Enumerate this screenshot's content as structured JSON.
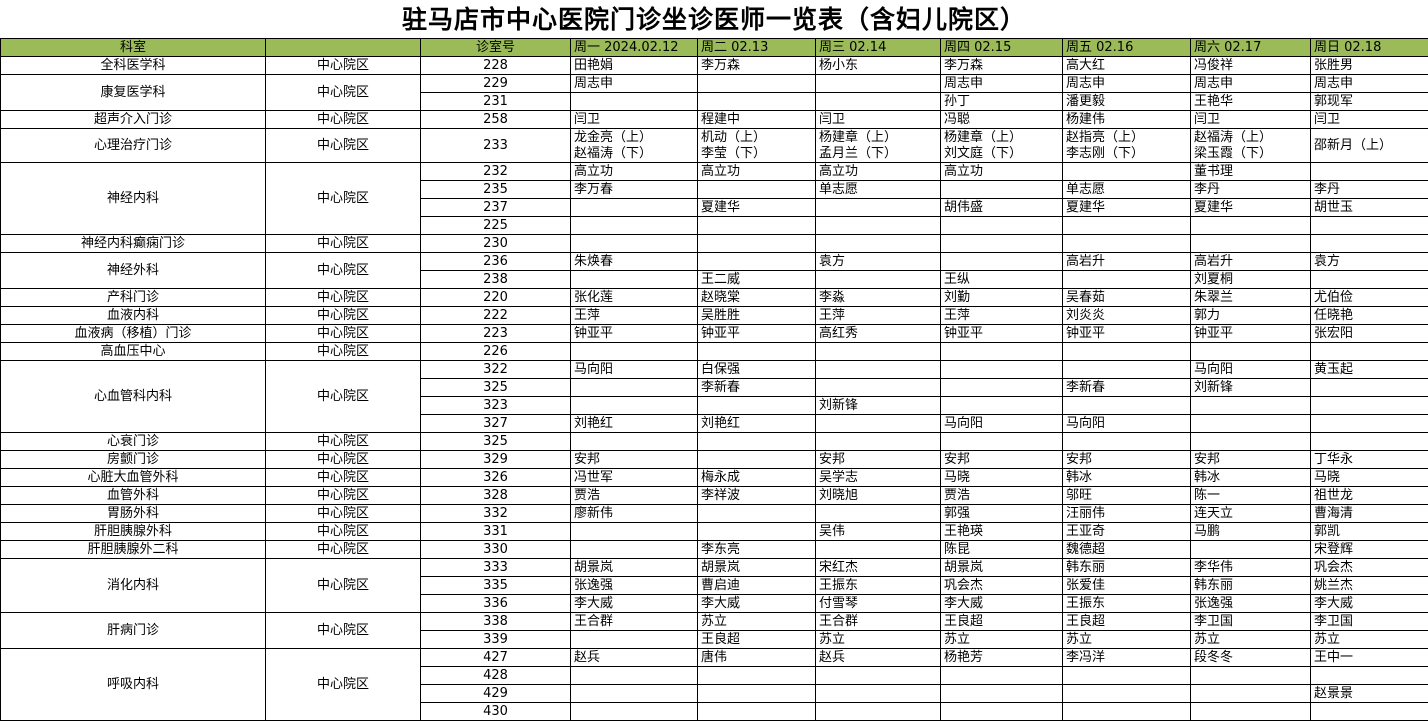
{
  "title": "驻马店市中心医院门诊坐诊医师一览表（含妇儿院区）",
  "header_color": "#9bbb59",
  "columns": [
    "科室",
    "",
    "诊室号",
    "周一 2024.02.12",
    "周二   02.13",
    "周三   02.14",
    "周四   02.15",
    "周五   02.16",
    "周六    02.17",
    "周日    02.18"
  ],
  "departments": [
    {
      "name": "全科医学科",
      "campus": "中心院区",
      "rooms": [
        {
          "room": "228",
          "doctors": [
            "田艳娟",
            "李万森",
            "杨小东",
            "李万森",
            "高大红",
            "冯俊祥",
            "张胜男"
          ]
        }
      ]
    },
    {
      "name": "康复医学科",
      "campus": "中心院区",
      "rooms": [
        {
          "room": "229",
          "doctors": [
            "周志申",
            "",
            "",
            "周志申",
            "周志申",
            "周志申",
            "周志申"
          ]
        },
        {
          "room": "231",
          "doctors": [
            "",
            "",
            "",
            "孙丁",
            "潘更毅",
            "王艳华",
            "郭现军"
          ]
        }
      ]
    },
    {
      "name": "超声介入门诊",
      "campus": "中心院区",
      "rooms": [
        {
          "room": "258",
          "doctors": [
            "闫卫",
            "程建中",
            "闫卫",
            "冯聪",
            "杨建伟",
            "闫卫",
            "闫卫"
          ]
        }
      ]
    },
    {
      "name": "心理治疗门诊",
      "campus": "中心院区",
      "rooms": [
        {
          "room": "233",
          "tall": true,
          "doctors": [
            "龙金亮（上）\n赵福涛（下）",
            "机动（上）\n李莹（下）",
            "杨建章（上）\n孟月兰（下）",
            "杨建章（上）\n刘文庭（下）",
            "赵指亮（上）\n李志刚（下）",
            "赵福涛（上）\n梁玉霞（下）",
            "邵新月（上）"
          ]
        }
      ]
    },
    {
      "name": "神经内科",
      "campus": "中心院区",
      "rooms": [
        {
          "room": "232",
          "doctors": [
            "高立功",
            "高立功",
            "高立功",
            "高立功",
            "",
            "董书理",
            ""
          ]
        },
        {
          "room": "235",
          "doctors": [
            "李万春",
            "",
            "单志愿",
            "",
            "单志愿",
            "李丹",
            "李丹"
          ]
        },
        {
          "room": "237",
          "doctors": [
            "",
            "夏建华",
            "",
            "胡伟盛",
            "夏建华",
            "夏建华",
            "胡世玉"
          ]
        },
        {
          "room": "225",
          "doctors": [
            "",
            "",
            "",
            "",
            "",
            "",
            ""
          ]
        }
      ]
    },
    {
      "name": "神经内科癫痫门诊",
      "campus": "中心院区",
      "rooms": [
        {
          "room": "230",
          "doctors": [
            "",
            "",
            "",
            "",
            "",
            "",
            ""
          ]
        }
      ]
    },
    {
      "name": "神经外科",
      "campus": "中心院区",
      "rooms": [
        {
          "room": "236",
          "doctors": [
            "朱焕春",
            "",
            "袁方",
            "",
            "高岩升",
            "高岩升",
            "袁方"
          ]
        },
        {
          "room": "238",
          "doctors": [
            "",
            "王二威",
            "",
            "王纵",
            "",
            "刘夏桐",
            ""
          ]
        }
      ]
    },
    {
      "name": "产科门诊",
      "campus": "中心院区",
      "rooms": [
        {
          "room": "220",
          "doctors": [
            "张化莲",
            "赵晓棠",
            "李淼",
            "刘勤",
            "吴春茹",
            "朱翠兰",
            "尤伯俭"
          ]
        }
      ]
    },
    {
      "name": "血液内科",
      "campus": "中心院区",
      "rooms": [
        {
          "room": "222",
          "doctors": [
            "王萍",
            "吴胜胜",
            "王萍",
            "王萍",
            "刘炎炎",
            "郭力",
            "任晓艳"
          ]
        }
      ]
    },
    {
      "name": "血液病（移植）门诊",
      "campus": "中心院区",
      "rooms": [
        {
          "room": "223",
          "doctors": [
            "钟亚平",
            "钟亚平",
            "高红秀",
            "钟亚平",
            "钟亚平",
            "钟亚平",
            "张宏阳"
          ]
        }
      ]
    },
    {
      "name": "高血压中心",
      "campus": "中心院区",
      "rooms": [
        {
          "room": "226",
          "doctors": [
            "",
            "",
            "",
            "",
            "",
            "",
            ""
          ]
        }
      ]
    },
    {
      "name": "心血管科内科",
      "campus": "中心院区",
      "rooms": [
        {
          "room": "322",
          "doctors": [
            "马向阳",
            "白保强",
            "",
            "",
            "",
            "马向阳",
            "黄玉起"
          ]
        },
        {
          "room": "325",
          "doctors": [
            "",
            "李新春",
            "",
            "",
            "李新春",
            "刘新锋",
            ""
          ]
        },
        {
          "room": "323",
          "doctors": [
            "",
            "",
            "刘新锋",
            "",
            "",
            "",
            ""
          ]
        },
        {
          "room": "327",
          "doctors": [
            "刘艳红",
            "刘艳红",
            "",
            "马向阳",
            "马向阳",
            "",
            ""
          ]
        }
      ]
    },
    {
      "name": "心衰门诊",
      "campus": "中心院区",
      "rooms": [
        {
          "room": "325",
          "doctors": [
            "",
            "",
            "",
            "",
            "",
            "",
            ""
          ]
        }
      ]
    },
    {
      "name": "房颤门诊",
      "campus": "中心院区",
      "rooms": [
        {
          "room": "329",
          "doctors": [
            "安邦",
            "",
            "安邦",
            "安邦",
            "安邦",
            "安邦",
            "丁华永"
          ]
        }
      ]
    },
    {
      "name": "心脏大血管外科",
      "campus": "中心院区",
      "rooms": [
        {
          "room": "326",
          "doctors": [
            "冯世军",
            "梅永成",
            "吴学志",
            "马晓",
            "韩冰",
            "韩冰",
            "马晓"
          ]
        }
      ]
    },
    {
      "name": "血管外科",
      "campus": "中心院区",
      "rooms": [
        {
          "room": "328",
          "doctors": [
            "贾浩",
            "李祥波",
            "刘晓旭",
            "贾浩",
            "邬旺",
            "陈一",
            "祖世龙"
          ]
        }
      ]
    },
    {
      "name": "胃肠外科",
      "campus": "中心院区",
      "rooms": [
        {
          "room": "332",
          "doctors": [
            "廖新伟",
            "",
            "",
            "郭强",
            "汪丽伟",
            "连天立",
            "曹海清"
          ]
        }
      ]
    },
    {
      "name": "肝胆胰腺外科",
      "campus": "中心院区",
      "rooms": [
        {
          "room": "331",
          "doctors": [
            "",
            "",
            "吴伟",
            "王艳瑛",
            "王亚奇",
            "马鹏",
            "郭凯"
          ]
        }
      ]
    },
    {
      "name": "肝胆胰腺外二科",
      "campus": "中心院区",
      "rooms": [
        {
          "room": "330",
          "doctors": [
            "",
            "李东亮",
            "",
            "陈昆",
            "魏德超",
            "",
            "宋登辉"
          ]
        }
      ]
    },
    {
      "name": "消化内科",
      "campus": "中心院区",
      "rooms": [
        {
          "room": "333",
          "doctors": [
            "胡景岚",
            "胡景岚",
            "宋红杰",
            "胡景岚",
            "韩东丽",
            "李华伟",
            "巩会杰"
          ]
        },
        {
          "room": "335",
          "doctors": [
            "张逸强",
            "曹启迪",
            "王振东",
            "巩会杰",
            "张爱佳",
            "韩东丽",
            "姚兰杰"
          ]
        },
        {
          "room": "336",
          "doctors": [
            "李大威",
            "李大威",
            "付雪琴",
            "李大威",
            "王振东",
            "张逸强",
            "李大威"
          ]
        }
      ]
    },
    {
      "name": "肝病门诊",
      "campus": "中心院区",
      "rooms": [
        {
          "room": "338",
          "doctors": [
            "王合群",
            "苏立",
            "王合群",
            "王良超",
            "王良超",
            "李卫国",
            "李卫国"
          ]
        },
        {
          "room": "339",
          "doctors": [
            "",
            "王良超",
            "苏立",
            "苏立",
            "苏立",
            "苏立",
            "苏立"
          ]
        }
      ]
    },
    {
      "name": "呼吸内科",
      "campus": "中心院区",
      "rooms": [
        {
          "room": "427",
          "doctors": [
            "赵兵",
            "唐伟",
            "赵兵",
            "杨艳芳",
            "李冯洋",
            "段冬冬",
            "王中一"
          ]
        },
        {
          "room": "428",
          "doctors": [
            "",
            "",
            "",
            "",
            "",
            "",
            ""
          ]
        },
        {
          "room": "429",
          "doctors": [
            "",
            "",
            "",
            "",
            "",
            "",
            "赵景景"
          ]
        },
        {
          "room": "430",
          "doctors": [
            "",
            "",
            "",
            "",
            "",
            "",
            ""
          ]
        }
      ]
    }
  ]
}
